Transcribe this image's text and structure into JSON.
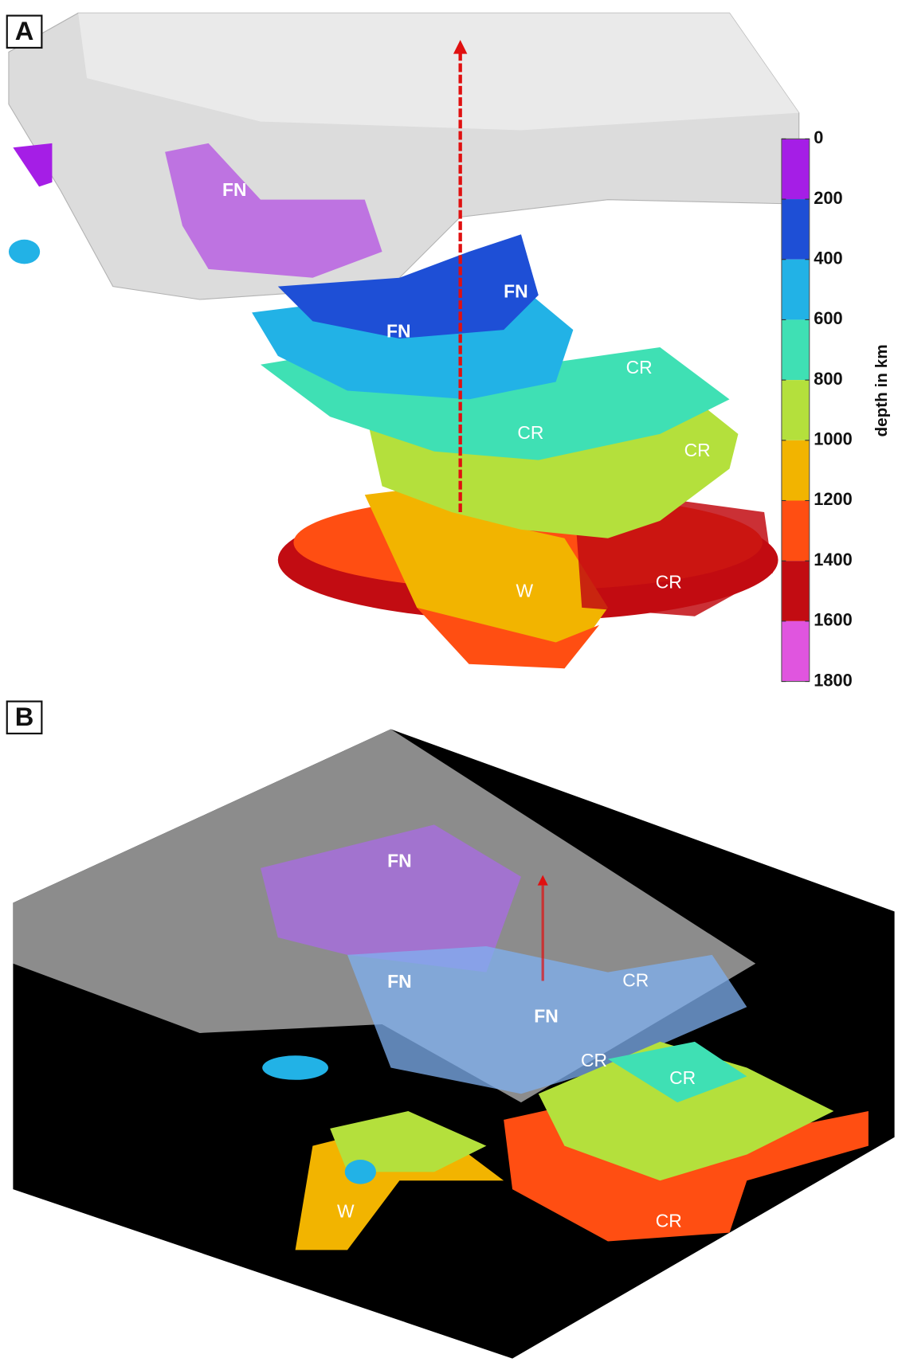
{
  "panels": [
    {
      "label": "A",
      "features": [
        "FN",
        "FN",
        "FN",
        "CR",
        "CR",
        "CR",
        "CR",
        "W"
      ]
    },
    {
      "label": "B",
      "features": [
        "FN",
        "FN",
        "FN",
        "CR",
        "CR",
        "CR",
        "CR",
        "W"
      ]
    }
  ],
  "colorbar": {
    "title": "depth in km",
    "range": [
      0,
      1800
    ],
    "ticks": [
      0,
      200,
      400,
      600,
      800,
      1000,
      1200,
      1400,
      1600,
      1800
    ],
    "colors": [
      "#a51ee6",
      "#1e4fd6",
      "#22b2e6",
      "#3fe0b4",
      "#b4e03c",
      "#f2b400",
      "#ff4e12",
      "#c20c12",
      "#e055df"
    ]
  }
}
